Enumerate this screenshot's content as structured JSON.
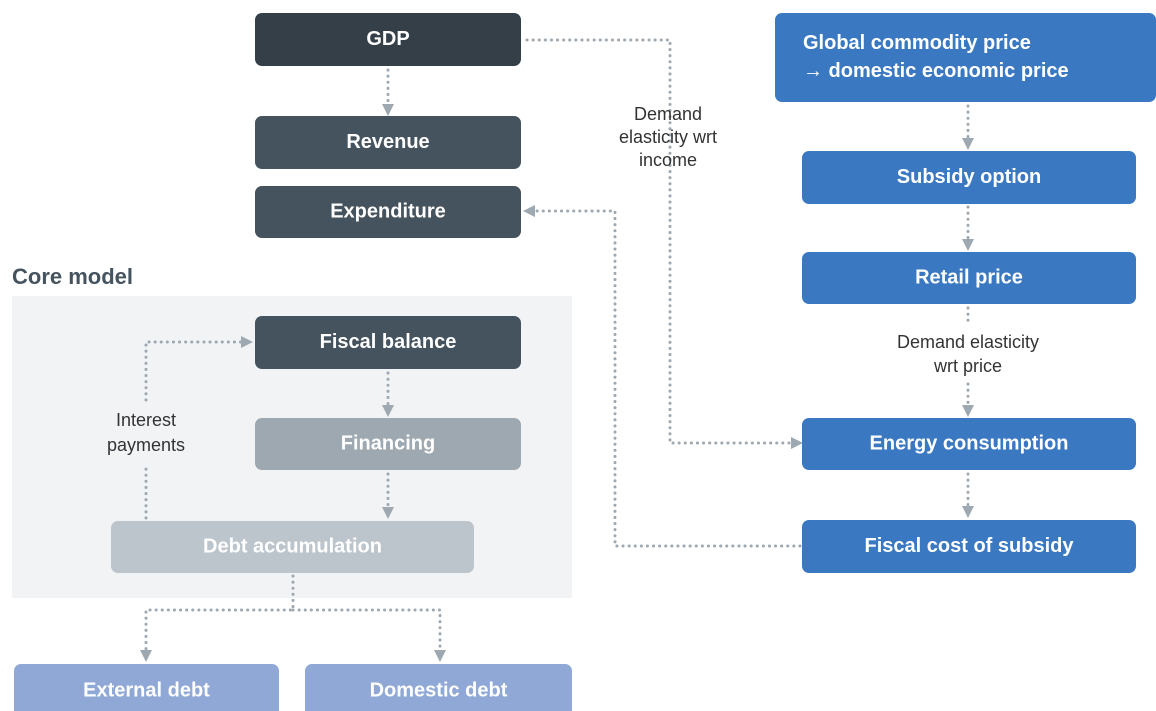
{
  "title": "Core model",
  "nodes": [
    {
      "lines": [
        "GDP"
      ]
    },
    {
      "lines": [
        "Revenue"
      ]
    },
    {
      "lines": [
        "Expenditure"
      ]
    },
    {
      "lines": [
        "Fiscal balance"
      ]
    },
    {
      "lines": [
        "Financing"
      ]
    },
    {
      "lines": [
        "Debt accumulation"
      ]
    },
    {
      "lines": [
        "External debt"
      ]
    },
    {
      "lines": [
        "Domestic debt"
      ]
    },
    {
      "lines": [
        "Global commodity price",
        "→ domestic economic price"
      ]
    },
    {
      "lines": [
        "Subsidy option"
      ]
    },
    {
      "lines": [
        "Retail price"
      ]
    },
    {
      "lines": [
        "Energy consumption"
      ]
    },
    {
      "lines": [
        "Fiscal cost of subsidy"
      ]
    }
  ],
  "edge_labels": [
    {
      "lines": [
        "Demand",
        "elasticity wrt",
        "income"
      ]
    },
    {
      "lines": [
        "Demand elasticity",
        "wrt price"
      ]
    },
    {
      "lines": [
        "Interest",
        "payments"
      ]
    }
  ]
}
